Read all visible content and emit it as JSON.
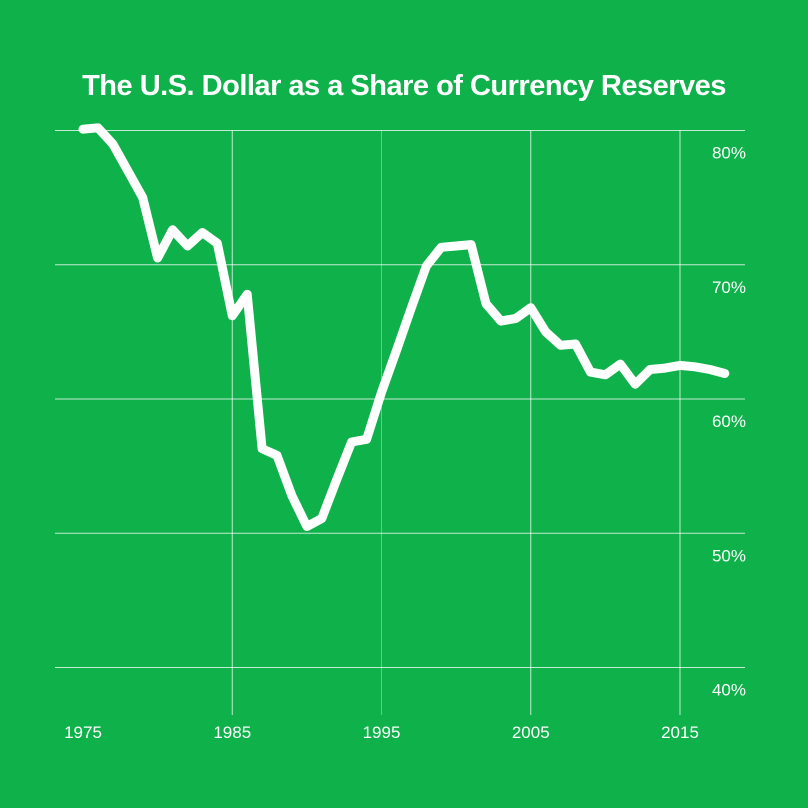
{
  "colors": {
    "background": "#0fb14b",
    "line": "#ffffff",
    "grid": "#ffffff",
    "text": "#ffffff"
  },
  "chart_data": {
    "type": "line",
    "title": "The U.S. Dollar as a Share of Currency Reserves",
    "xlabel": "",
    "ylabel": "",
    "xlim": [
      1974.5,
      1978
    ],
    "ylim": [
      40,
      80
    ],
    "y_axis_position": "right",
    "grid": true,
    "legend": "none",
    "x_ticks": [
      1975,
      1985,
      1995,
      2005,
      2015
    ],
    "x_tick_labels": [
      "1975",
      "1985",
      "1995",
      "2005",
      "2015"
    ],
    "y_ticks": [
      40,
      50,
      60,
      70,
      80
    ],
    "y_tick_labels": [
      "40%",
      "50%",
      "60%",
      "70%",
      "80%"
    ],
    "series": [
      {
        "x": [
          1975,
          1976,
          1977,
          1978,
          1979,
          1980,
          1981,
          1982,
          1983,
          1984,
          1985,
          1986,
          1987,
          1988,
          1989,
          1990,
          1991,
          1992,
          1993,
          1994,
          1995,
          1996,
          1997,
          1998,
          1999,
          2000,
          2001,
          2002,
          2003,
          2004,
          2005,
          2006,
          2007,
          2008,
          2009,
          2010,
          2011,
          2012,
          2013,
          2014,
          2015,
          2016,
          2017,
          2018
        ],
        "values": [
          80.1,
          80.2,
          79.0,
          77.0,
          75.0,
          70.5,
          72.6,
          71.4,
          72.4,
          71.6,
          66.2,
          67.8,
          56.3,
          55.8,
          52.8,
          50.5,
          51.1,
          54.0,
          56.8,
          57.0,
          60.5,
          63.6,
          66.8,
          69.9,
          71.3,
          71.4,
          71.5,
          67.1,
          65.8,
          66.0,
          66.8,
          65.0,
          64.0,
          64.1,
          62.0,
          61.8,
          62.6,
          61.1,
          62.2,
          62.3,
          62.5,
          62.4,
          62.2,
          61.9
        ]
      }
    ]
  }
}
